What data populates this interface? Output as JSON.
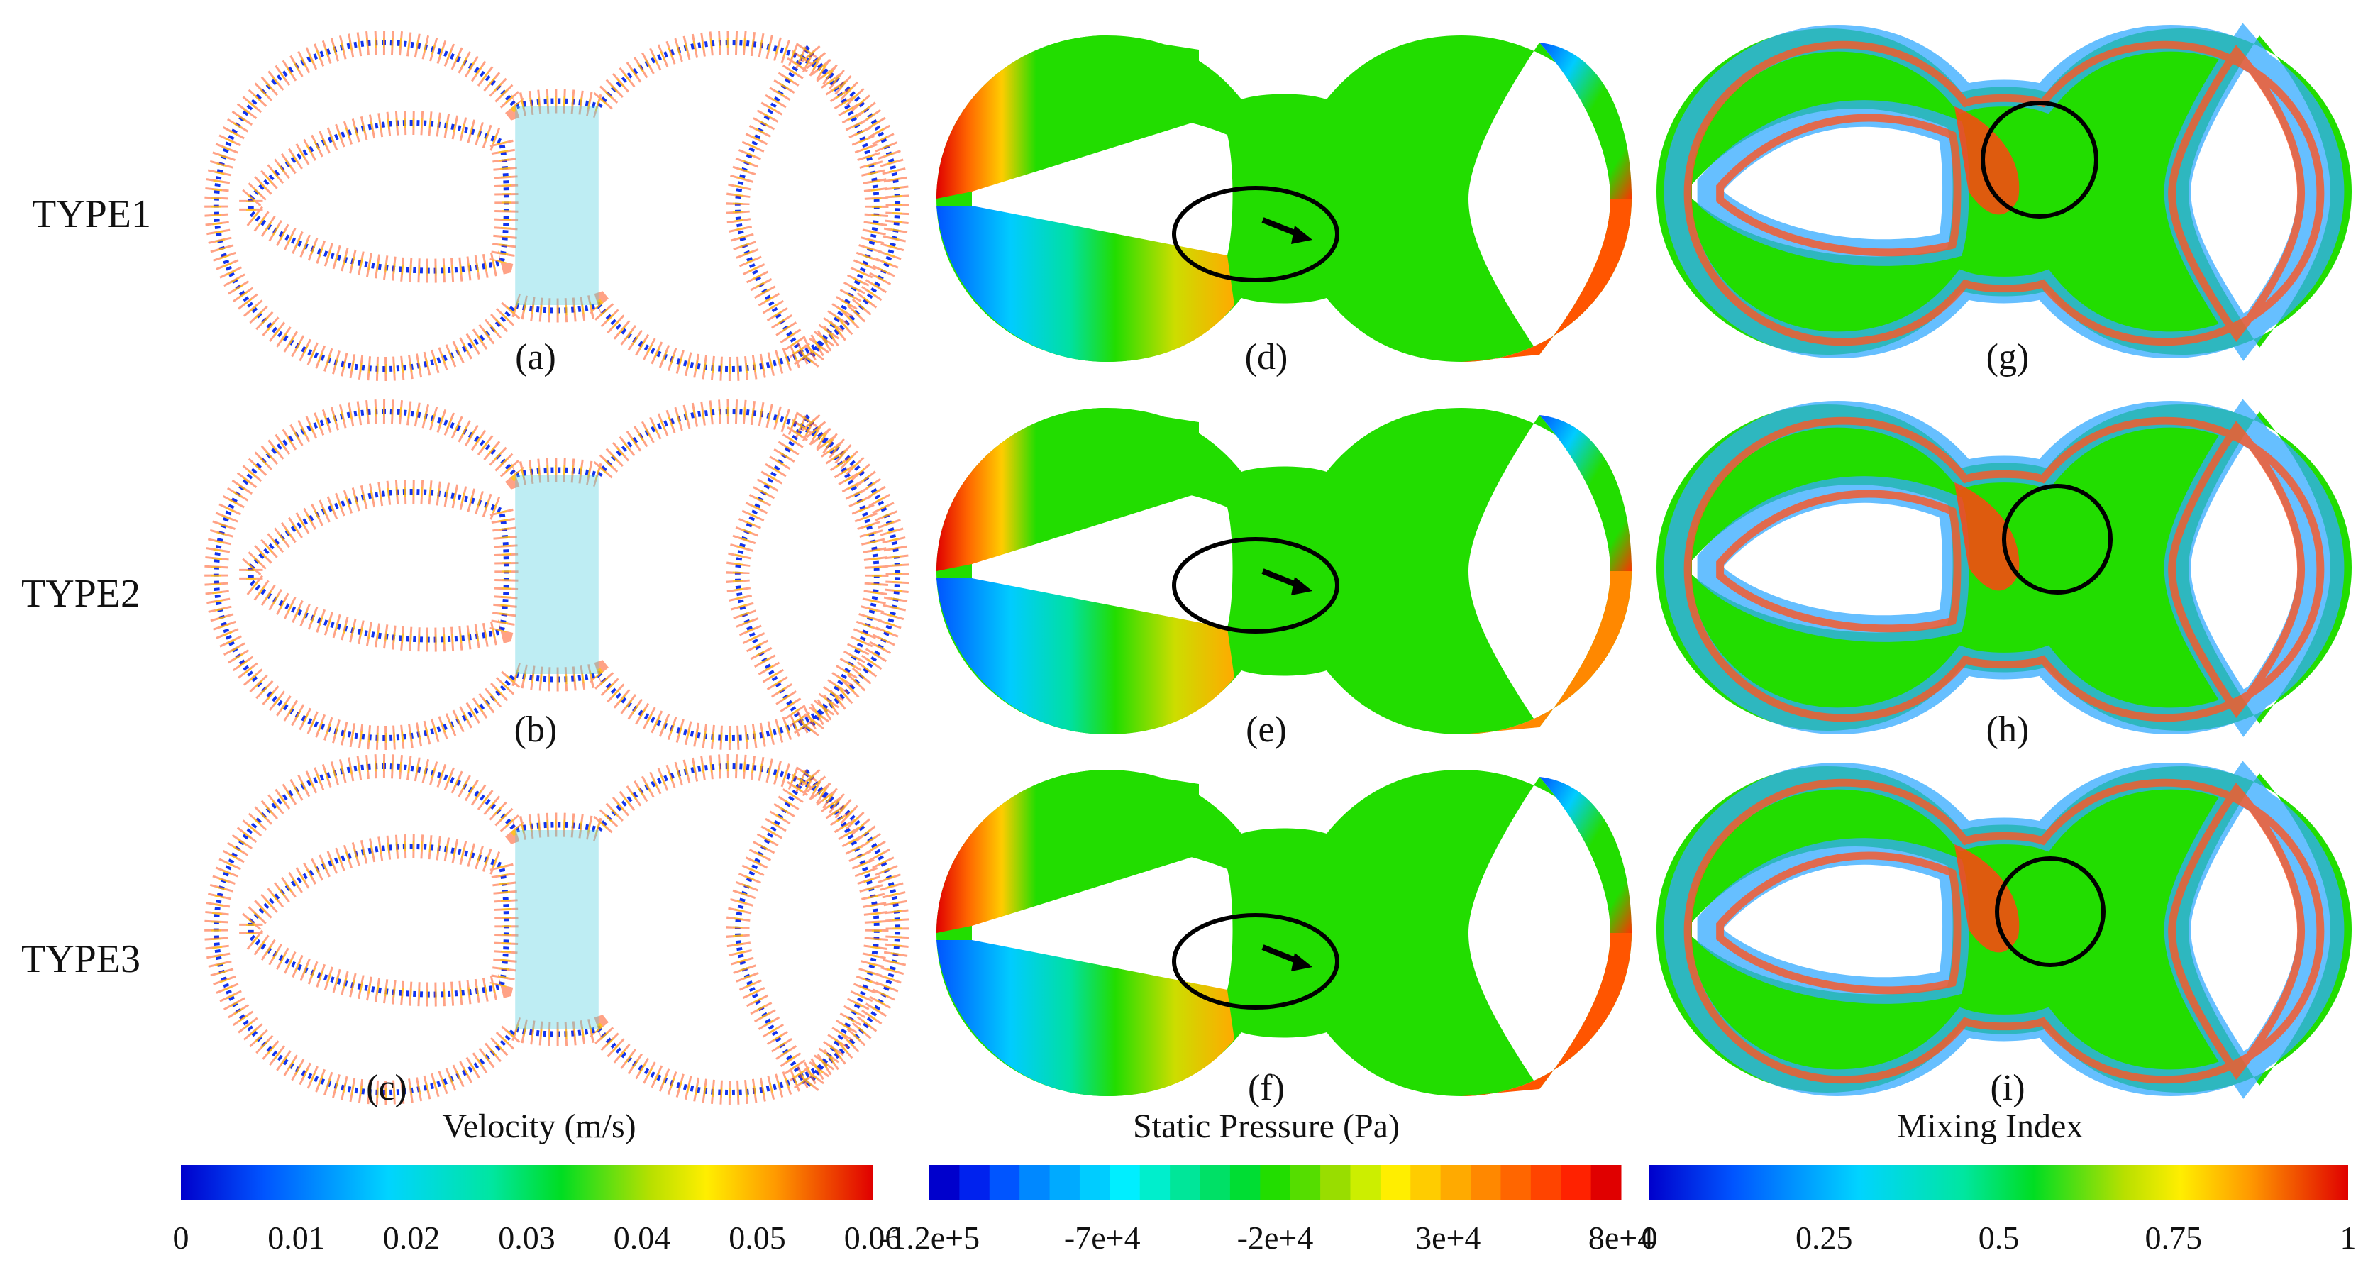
{
  "rows": [
    "TYPE1",
    "TYPE2",
    "TYPE3"
  ],
  "panels": {
    "velocity": [
      "(a)",
      "(b)",
      "(c)"
    ],
    "pressure": [
      "(d)",
      "(e)",
      "(f)"
    ],
    "mixing": [
      "(g)",
      "(h)",
      "(i)"
    ]
  },
  "colorbars": [
    {
      "title": "Velocity (m/s)",
      "ticks": [
        "0",
        "0.01",
        "0.02",
        "0.03",
        "0.04",
        "0.05",
        "0.06"
      ],
      "style": "continuous"
    },
    {
      "title": "Static Pressure (Pa)",
      "ticks": [
        "-1.2e+5",
        "-7e+4",
        "-2e+4",
        "3e+4",
        "8e+4"
      ],
      "style": "banded"
    },
    {
      "title": "Mixing Index",
      "ticks": [
        "0",
        "0.25",
        "0.5",
        "0.75",
        "1"
      ],
      "style": "continuous"
    }
  ],
  "colors": {
    "jet": [
      "#0000cc",
      "#0055ff",
      "#00c8ff",
      "#00e0a0",
      "#00dd22",
      "#aadd00",
      "#ffee00",
      "#ff9900",
      "#ff3300",
      "#dd0000"
    ],
    "annotation": "#000000"
  }
}
